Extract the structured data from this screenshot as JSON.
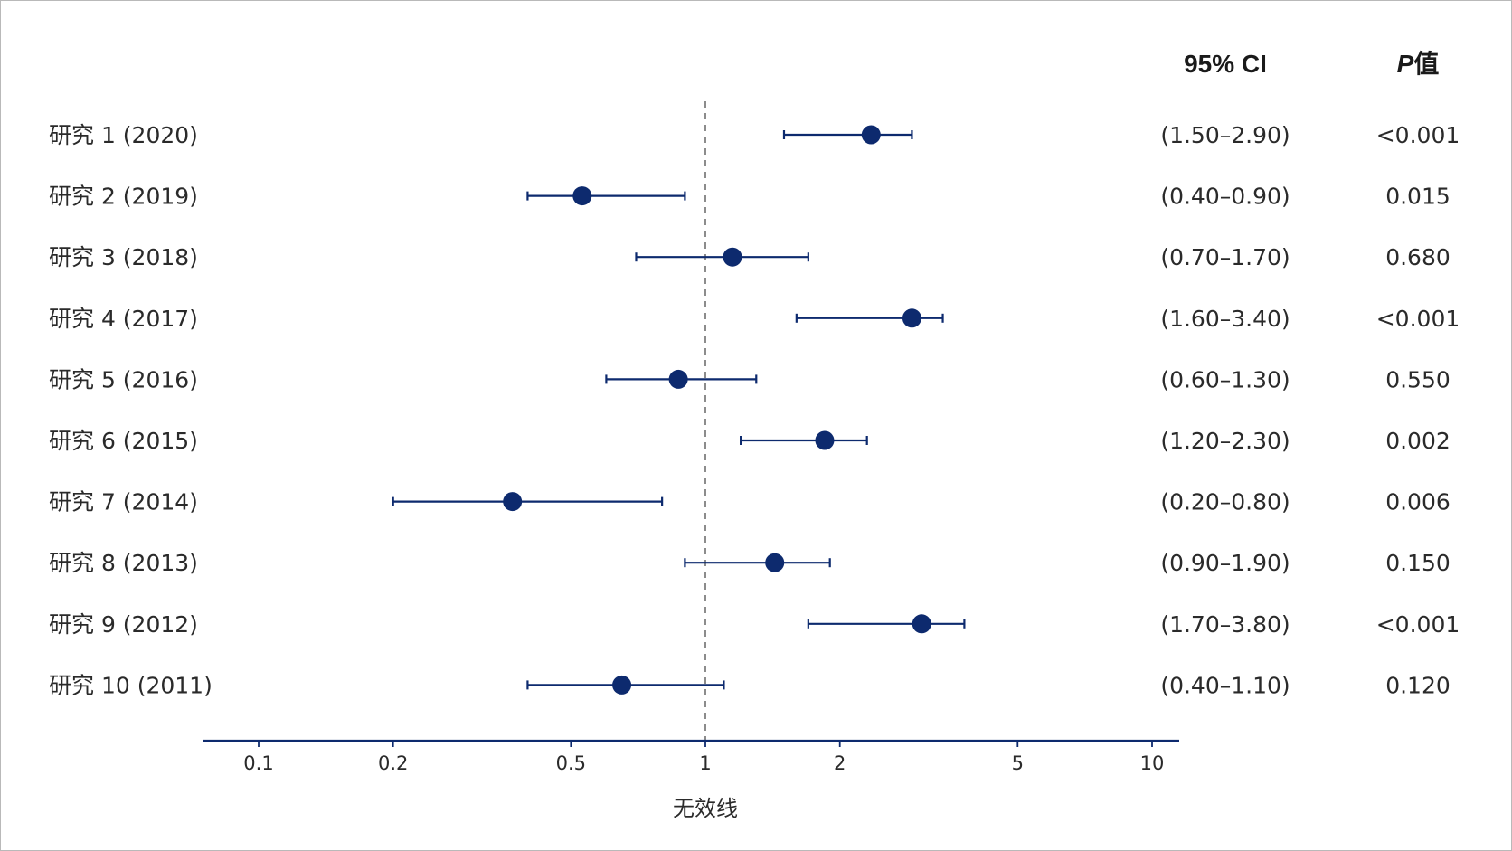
{
  "chart_data": {
    "type": "forest",
    "xscale": "log",
    "xlim": [
      0.07,
      11
    ],
    "reference_value": 1,
    "reference_label": "无效线",
    "xticks": [
      0.1,
      0.2,
      0.5,
      1,
      2,
      5,
      10
    ],
    "xtick_labels": [
      "0.1",
      "0.2",
      "0.5",
      "1",
      "2",
      "5",
      "10"
    ],
    "xlabel": "无效线",
    "headers": {
      "ci": "95% CI",
      "p_italic": "P",
      "p_rest": "值"
    },
    "marker_color": "#0d2a6e",
    "studies": [
      {
        "label": "研究 1 (2020)",
        "estimate": 2.35,
        "lower": 1.5,
        "upper": 2.9,
        "ci_text": "(1.50–2.90)",
        "p": "<0.001"
      },
      {
        "label": "研究 2 (2019)",
        "estimate": 0.53,
        "lower": 0.4,
        "upper": 0.9,
        "ci_text": "(0.40–0.90)",
        "p": "0.015"
      },
      {
        "label": "研究 3 (2018)",
        "estimate": 1.15,
        "lower": 0.7,
        "upper": 1.7,
        "ci_text": "(0.70–1.70)",
        "p": "0.680"
      },
      {
        "label": "研究 4 (2017)",
        "estimate": 2.9,
        "lower": 1.6,
        "upper": 3.4,
        "ci_text": "(1.60–3.40)",
        "p": "<0.001"
      },
      {
        "label": "研究 5 (2016)",
        "estimate": 0.87,
        "lower": 0.6,
        "upper": 1.3,
        "ci_text": "(0.60–1.30)",
        "p": "0.550"
      },
      {
        "label": "研究 6 (2015)",
        "estimate": 1.85,
        "lower": 1.2,
        "upper": 2.3,
        "ci_text": "(1.20–2.30)",
        "p": "0.002"
      },
      {
        "label": "研究 7 (2014)",
        "estimate": 0.37,
        "lower": 0.2,
        "upper": 0.8,
        "ci_text": "(0.20–0.80)",
        "p": "0.006"
      },
      {
        "label": "研究 8 (2013)",
        "estimate": 1.43,
        "lower": 0.9,
        "upper": 1.9,
        "ci_text": "(0.90–1.90)",
        "p": "0.150"
      },
      {
        "label": "研究 9 (2012)",
        "estimate": 3.05,
        "lower": 1.7,
        "upper": 3.8,
        "ci_text": "(1.70–3.80)",
        "p": "<0.001"
      },
      {
        "label": "研究 10 (2011)",
        "estimate": 0.65,
        "lower": 0.4,
        "upper": 1.1,
        "ci_text": "(0.40–1.10)",
        "p": "0.120"
      }
    ]
  }
}
